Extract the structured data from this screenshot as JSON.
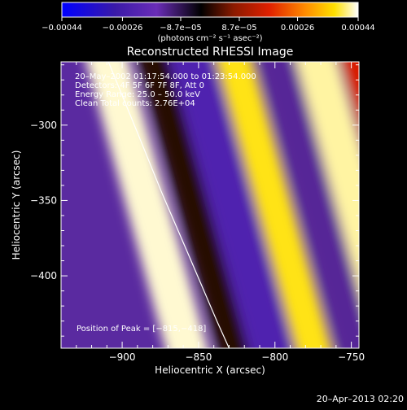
{
  "chart_data": {
    "type": "heatmap",
    "title": "Reconstructed RHESSI Image",
    "xlabel": "Heliocentric X (arcsec)",
    "ylabel": "Heliocentric Y (arcsec)",
    "xlim": [
      -940,
      -745
    ],
    "ylim": [
      -448,
      -258
    ],
    "x_ticks": [
      -900,
      -850,
      -800,
      -750
    ],
    "x_tick_labels": [
      "−900",
      "−850",
      "−800",
      "−750"
    ],
    "y_ticks": [
      -300,
      -350,
      -400
    ],
    "y_tick_labels": [
      "−300",
      "−350",
      "−400"
    ],
    "colorbar": {
      "range": [
        -0.00044,
        0.00044
      ],
      "ticks": [
        -0.00044,
        -0.00026,
        -8.7e-05,
        8.7e-05,
        0.00026,
        0.00044
      ],
      "tick_labels": [
        "−0.00044",
        "−0.00026",
        "−8.7e−05",
        "8.7e−05",
        "0.00026",
        "0.00044"
      ],
      "unit_label": "(photons cm⁻² s⁻¹ asec⁻²)",
      "colors": [
        "#0000ff",
        "#3a1aa8",
        "#6a2db8",
        "#000000",
        "#8b1a00",
        "#e02000",
        "#ff8a00",
        "#ffe000",
        "#ffffff"
      ]
    },
    "info_lines": [
      "20–May–2002 01:17:54.000 to 01:23:54.000",
      "Detectors: 4F 5F 6F 7F 8F, Att 0",
      "Energy Range: 25.0 – 50.0 keV",
      "Clean     Total counts: 2.76E+04"
    ],
    "peak_label": "Position of Peak = [−815,−418]",
    "timestamp": "20–Apr–2013 02:20",
    "limb_curve": [
      [
        -909,
        -258
      ],
      [
        -890,
        -305
      ],
      [
        -874,
        -345
      ],
      [
        -857,
        -385
      ],
      [
        -838,
        -430
      ],
      [
        -830,
        -448
      ]
    ],
    "stripes": [
      {
        "x_at_top": -915,
        "slope": 0.33,
        "value": 0.00042,
        "width": 14
      },
      {
        "x_at_top": -885,
        "slope": 0.33,
        "value": -8e-05,
        "width": 10
      },
      {
        "x_at_top": -860,
        "slope": 0.33,
        "value": -0.00028,
        "width": 14
      },
      {
        "x_at_top": -832,
        "slope": 0.33,
        "value": 0.00034,
        "width": 12
      },
      {
        "x_at_top": -805,
        "slope": 0.33,
        "value": -0.0002,
        "width": 12
      },
      {
        "x_at_top": -778,
        "slope": 0.33,
        "value": 0.0004,
        "width": 14
      },
      {
        "x_at_top": -752,
        "slope": 0.33,
        "value": 0.0001,
        "width": 10
      }
    ]
  }
}
